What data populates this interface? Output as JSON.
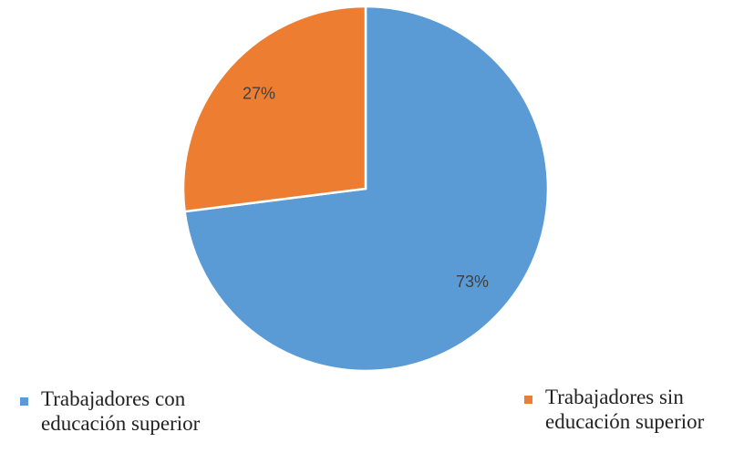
{
  "chart_data": {
    "type": "pie",
    "categories": [
      "Trabajadores con educación superior",
      "Trabajadores sin educación superior"
    ],
    "values": [
      73,
      27
    ],
    "value_labels": [
      "73%",
      "27%"
    ],
    "colors": [
      "#5b9bd5",
      "#ed7d31"
    ],
    "legend": "bottom"
  }
}
